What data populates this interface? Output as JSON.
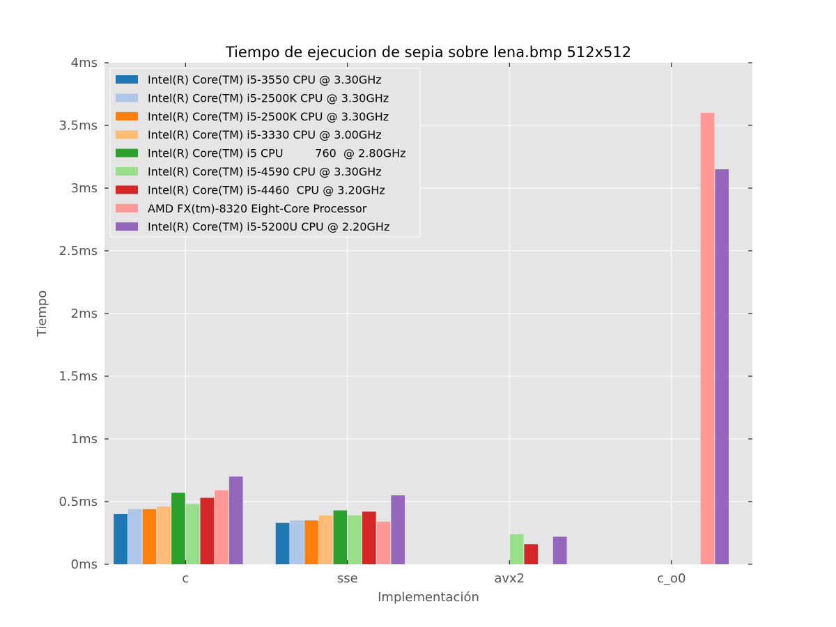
{
  "chart_data": {
    "type": "bar",
    "title": "Tiempo de ejecucion de sepia sobre lena.bmp 512x512",
    "xlabel": "Implementación",
    "ylabel": "Tiempo",
    "categories": [
      "c",
      "sse",
      "avx2",
      "c_o0"
    ],
    "ylim": [
      0,
      4
    ],
    "yticks": [
      0,
      0.5,
      1,
      1.5,
      2,
      2.5,
      3,
      3.5,
      4
    ],
    "ytick_labels": [
      "0ms",
      "0.5ms",
      "1ms",
      "1.5ms",
      "2ms",
      "2.5ms",
      "3ms",
      "3.5ms",
      "4ms"
    ],
    "grid": true,
    "legend_position": "top-left",
    "series": [
      {
        "name": "Intel(R) Core(TM) i5-3550 CPU @ 3.30GHz",
        "color": "#1f77b4",
        "values": [
          0.4,
          0.33,
          null,
          null
        ]
      },
      {
        "name": "Intel(R) Core(TM) i5-2500K CPU @ 3.30GHz",
        "color": "#aec7e8",
        "values": [
          0.44,
          0.35,
          null,
          null
        ]
      },
      {
        "name": "Intel(R) Core(TM) i5-2500K CPU @ 3.30GHz",
        "color": "#ff7f0e",
        "values": [
          0.44,
          0.35,
          null,
          null
        ]
      },
      {
        "name": "Intel(R) Core(TM) i5-3330 CPU @ 3.00GHz",
        "color": "#ffbb78",
        "values": [
          0.46,
          0.39,
          null,
          null
        ]
      },
      {
        "name": "Intel(R) Core(TM) i5 CPU         760  @ 2.80GHz",
        "color": "#2ca02c",
        "values": [
          0.57,
          0.43,
          null,
          null
        ]
      },
      {
        "name": "Intel(R) Core(TM) i5-4590 CPU @ 3.30GHz",
        "color": "#98df8a",
        "values": [
          0.48,
          0.39,
          0.24,
          null
        ]
      },
      {
        "name": "Intel(R) Core(TM) i5-4460  CPU @ 3.20GHz",
        "color": "#d62728",
        "values": [
          0.53,
          0.42,
          0.16,
          null
        ]
      },
      {
        "name": "AMD FX(tm)-8320 Eight-Core Processor",
        "color": "#ff9896",
        "values": [
          0.59,
          0.34,
          null,
          3.6
        ]
      },
      {
        "name": "Intel(R) Core(TM) i5-5200U CPU @ 2.20GHz",
        "color": "#9467bd",
        "values": [
          0.7,
          0.55,
          0.22,
          3.15
        ]
      }
    ],
    "colors": {
      "plot_background": "#e5e5e5",
      "grid": "#ffffff",
      "tick_text": "#555555"
    }
  }
}
